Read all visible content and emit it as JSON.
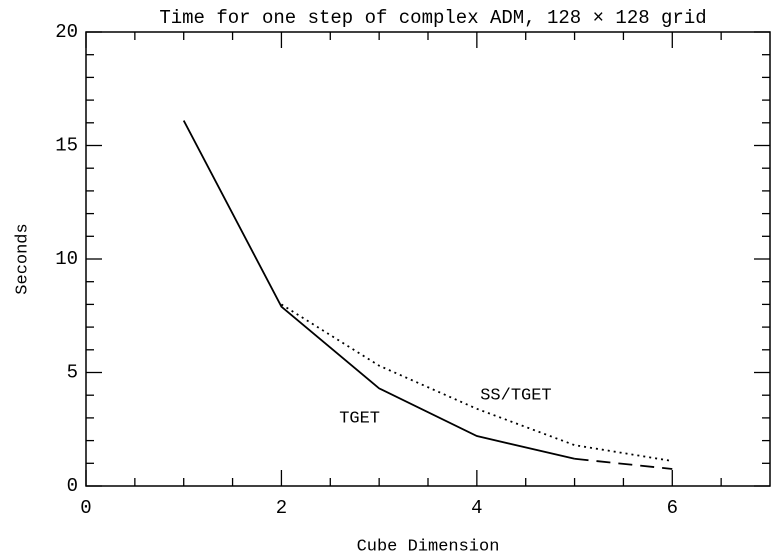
{
  "chart_data": {
    "type": "line",
    "title": "Time for one step of complex ADM, 128 × 128 grid",
    "xlabel": "Cube Dimension",
    "ylabel": "Seconds",
    "x": [
      1,
      2,
      3,
      4,
      5,
      6
    ],
    "series": [
      {
        "name": "TGET",
        "color": "#000000",
        "dash": "none",
        "values": [
          16.1,
          7.9,
          4.3,
          2.2,
          1.2,
          null
        ]
      },
      {
        "color": "#000000",
        "dash": "14,8",
        "values": [
          null,
          null,
          null,
          null,
          1.2,
          0.75
        ]
      },
      {
        "name": "SS/TGET",
        "color": "#000000",
        "dash": "2,4",
        "values": [
          null,
          8.0,
          5.3,
          3.4,
          1.8,
          1.1
        ]
      }
    ],
    "annotations": [
      {
        "text": "TGET",
        "x": 2.8,
        "y": 3.0
      },
      {
        "text": "SS/TGET",
        "x": 4.4,
        "y": 4.0
      }
    ],
    "xlim": [
      0,
      7
    ],
    "ylim": [
      0,
      20
    ],
    "xticks": [
      0,
      2,
      4,
      6
    ],
    "yticks": [
      0,
      5,
      10,
      15,
      20
    ],
    "xminorticks": [
      0.5,
      1,
      1.5,
      2.5,
      3,
      3.5,
      4.5,
      5,
      5.5,
      6.5
    ],
    "yminorticks": [
      1,
      2,
      3,
      4,
      6,
      7,
      8,
      9,
      11,
      12,
      13,
      14,
      16,
      17,
      18,
      19
    ],
    "grid": false
  }
}
